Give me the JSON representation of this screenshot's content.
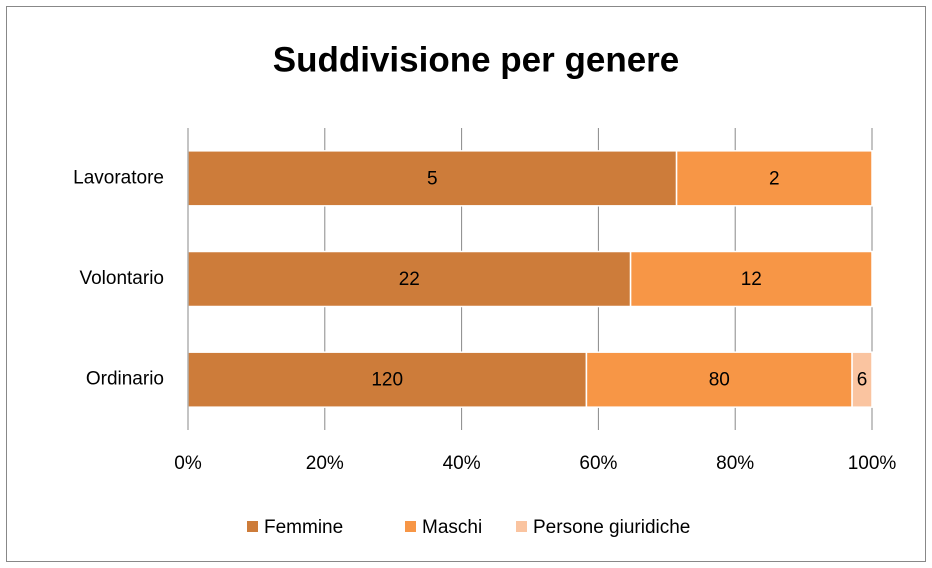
{
  "chart_data": {
    "type": "bar",
    "orientation": "horizontal",
    "stacked": "percent",
    "title": "Suddivisione per genere",
    "categories": [
      "Lavoratore",
      "Volontario",
      "Ordinario"
    ],
    "series": [
      {
        "name": "Femmine",
        "color": "#cd7c3a",
        "values": [
          5,
          22,
          120
        ]
      },
      {
        "name": "Maschi",
        "color": "#f79646",
        "values": [
          2,
          12,
          80
        ]
      },
      {
        "name": "Persone giuridiche",
        "color": "#fac4a0",
        "values": [
          null,
          null,
          6
        ]
      }
    ],
    "xlim": [
      0,
      100
    ],
    "xticks": [
      {
        "value": 0,
        "label": "0%"
      },
      {
        "value": 20,
        "label": "20%"
      },
      {
        "value": 40,
        "label": "40%"
      },
      {
        "value": 60,
        "label": "60%"
      },
      {
        "value": 80,
        "label": "80%"
      },
      {
        "value": 100,
        "label": "100%"
      }
    ],
    "grid": true,
    "legend": "bottom"
  }
}
